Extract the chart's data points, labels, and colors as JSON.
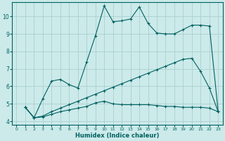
{
  "xlabel": "Humidex (Indice chaleur)",
  "bg_color": "#cceaea",
  "grid_color": "#aacfcf",
  "line_color": "#006060",
  "xlim": [
    -0.5,
    23.5
  ],
  "ylim": [
    3.8,
    10.8
  ],
  "yticks": [
    4,
    5,
    6,
    7,
    8,
    9,
    10
  ],
  "xticks": [
    0,
    1,
    2,
    3,
    4,
    5,
    6,
    7,
    8,
    9,
    10,
    11,
    12,
    13,
    14,
    15,
    16,
    17,
    18,
    19,
    20,
    21,
    22,
    23
  ],
  "line1_x": [
    1,
    2,
    3,
    4,
    5,
    6,
    7,
    8,
    9,
    10,
    11,
    12,
    13,
    14,
    15,
    16,
    17,
    18,
    19,
    20,
    21,
    22,
    23
  ],
  "line1_y": [
    4.8,
    4.2,
    5.3,
    6.3,
    6.4,
    6.1,
    5.9,
    7.4,
    8.9,
    10.6,
    9.7,
    9.75,
    9.85,
    10.55,
    9.6,
    9.05,
    9.0,
    9.0,
    9.25,
    9.5,
    9.5,
    9.45,
    4.55
  ],
  "line2_x": [
    1,
    2,
    3,
    4,
    5,
    6,
    7,
    8,
    9,
    10,
    11,
    12,
    13,
    14,
    15,
    16,
    17,
    18,
    19,
    20,
    21,
    22,
    23
  ],
  "line2_y": [
    4.8,
    4.2,
    4.3,
    4.55,
    4.75,
    4.95,
    5.15,
    5.35,
    5.55,
    5.75,
    5.95,
    6.15,
    6.35,
    6.55,
    6.75,
    6.95,
    7.15,
    7.35,
    7.55,
    7.6,
    6.85,
    5.9,
    4.55
  ],
  "line3_x": [
    1,
    2,
    3,
    4,
    5,
    6,
    7,
    8,
    9,
    10,
    11,
    12,
    13,
    14,
    15,
    16,
    17,
    18,
    19,
    20,
    21,
    22,
    23
  ],
  "line3_y": [
    4.8,
    4.2,
    4.25,
    4.4,
    4.55,
    4.65,
    4.75,
    4.85,
    5.05,
    5.15,
    5.0,
    4.95,
    4.95,
    4.95,
    4.95,
    4.9,
    4.85,
    4.85,
    4.8,
    4.8,
    4.8,
    4.75,
    4.55
  ]
}
